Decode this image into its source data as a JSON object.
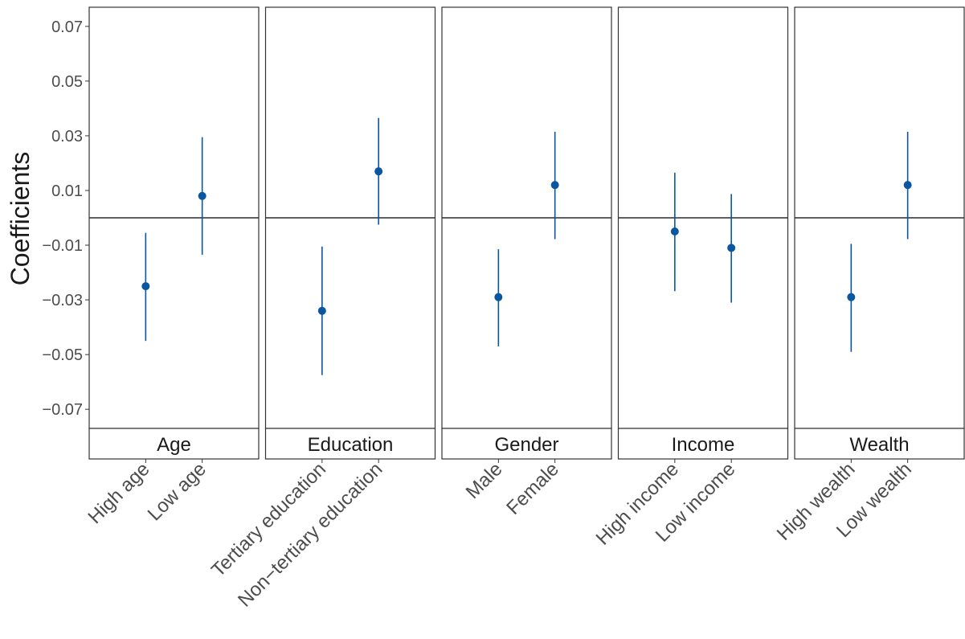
{
  "chart_data": {
    "type": "scatter",
    "ylabel": "Coefficients",
    "xlabel": "",
    "ylim": [
      -0.077,
      0.077
    ],
    "yticks": [
      0.07,
      0.05,
      0.03,
      0.01,
      -0.01,
      -0.03,
      -0.05,
      -0.07
    ],
    "ytick_labels": [
      "0.07",
      "0.05",
      "0.03",
      "0.01",
      "−0.01",
      "−0.03",
      "−0.05",
      "−0.07"
    ],
    "reference_line": 0,
    "colors": {
      "point": "#0a56a0",
      "reference": "#000000"
    },
    "panels": [
      {
        "facet": "Age",
        "points": [
          {
            "label": "High age",
            "estimate": -0.025,
            "lower": -0.045,
            "upper": -0.0055
          },
          {
            "label": "Low age",
            "estimate": 0.008,
            "lower": -0.0135,
            "upper": 0.0295
          }
        ]
      },
      {
        "facet": "Education",
        "points": [
          {
            "label": "Tertiary education",
            "estimate": -0.034,
            "lower": -0.0575,
            "upper": -0.0105
          },
          {
            "label": "Non−tertiary education",
            "estimate": 0.017,
            "lower": -0.0025,
            "upper": 0.0365
          }
        ]
      },
      {
        "facet": "Gender",
        "points": [
          {
            "label": "Male",
            "estimate": -0.029,
            "lower": -0.047,
            "upper": -0.0115
          },
          {
            "label": "Female",
            "estimate": 0.012,
            "lower": -0.0078,
            "upper": 0.0315
          }
        ]
      },
      {
        "facet": "Income",
        "points": [
          {
            "label": "High income",
            "estimate": -0.005,
            "lower": -0.0268,
            "upper": 0.0165
          },
          {
            "label": "Low income",
            "estimate": -0.011,
            "lower": -0.031,
            "upper": 0.0087
          }
        ]
      },
      {
        "facet": "Wealth",
        "points": [
          {
            "label": "High wealth",
            "estimate": -0.029,
            "lower": -0.049,
            "upper": -0.0095
          },
          {
            "label": "Low wealth",
            "estimate": 0.012,
            "lower": -0.0078,
            "upper": 0.0315
          }
        ]
      }
    ]
  }
}
